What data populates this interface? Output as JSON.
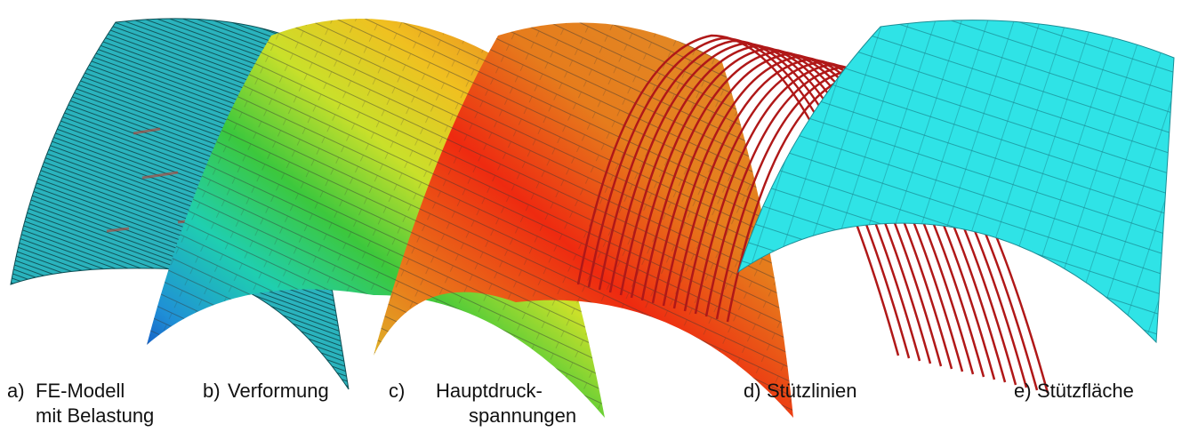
{
  "panels": [
    {
      "label": "a)",
      "lines": [
        "FE-Modell",
        "mit Belastung"
      ]
    },
    {
      "label": "b)",
      "lines": [
        "Verformung"
      ]
    },
    {
      "label": "c)",
      "lines": [
        "Hauptdruck-",
        "spannungen"
      ]
    },
    {
      "label": "d)",
      "lines": [
        "Stützlinien"
      ]
    },
    {
      "label": "e)",
      "lines": [
        "Stützfläche"
      ]
    }
  ]
}
